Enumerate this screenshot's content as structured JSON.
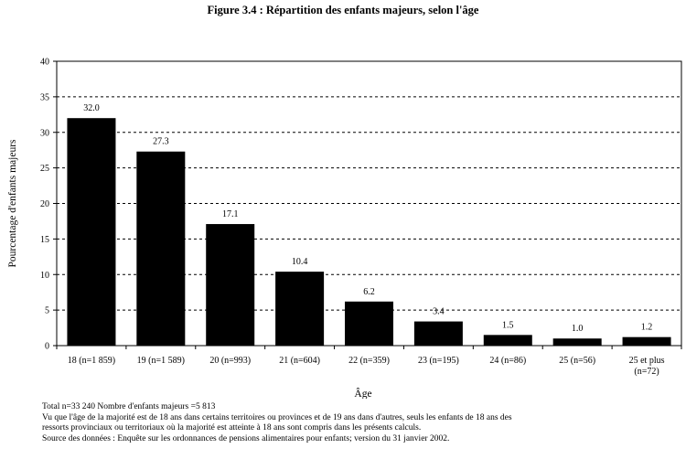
{
  "chart_data": {
    "type": "bar",
    "title": "Figure 3.4 : Répartition des enfants majeurs, selon l'âge",
    "xlabel": "Âge",
    "ylabel": "Pourcentage d'enfants majeurs",
    "ylim": [
      0,
      40
    ],
    "yticks": [
      0,
      5,
      10,
      15,
      20,
      25,
      30,
      35,
      40
    ],
    "grid": "dashed horizontal",
    "categories": [
      [
        "18 (n=1 859)"
      ],
      [
        "19 (n=1 589)"
      ],
      [
        "20 (n=993)"
      ],
      [
        "21 (n=604)"
      ],
      [
        "22 (n=359)"
      ],
      [
        "23 (n=195)"
      ],
      [
        "24 (n=86)"
      ],
      [
        "25 (n=56)"
      ],
      [
        "25 et plus",
        "(n=72)"
      ]
    ],
    "values": [
      32.0,
      27.3,
      17.1,
      10.4,
      6.2,
      3.4,
      1.5,
      1.0,
      1.2
    ],
    "value_labels": [
      "32.0",
      "27.3",
      "17.1",
      "10.4",
      "6.2",
      "3.4",
      "1.5",
      "1.0",
      "1.2"
    ],
    "bar_color": "#000000"
  },
  "notes": [
    "Total n=33 240    Nombre d'enfants majeurs =5 813",
    "Vu que l'âge de la majorité est de 18 ans dans certains territoires ou provinces et de 19 ans dans d'autres, seuls les enfants de 18 ans des",
    "ressorts provinciaux ou territoriaux où la majorité est atteinte à 18 ans sont compris dans les présents calculs.",
    "Source des données : Enquête sur les ordonnances de pensions alimentaires pour enfants; version du 31 janvier 2002."
  ]
}
